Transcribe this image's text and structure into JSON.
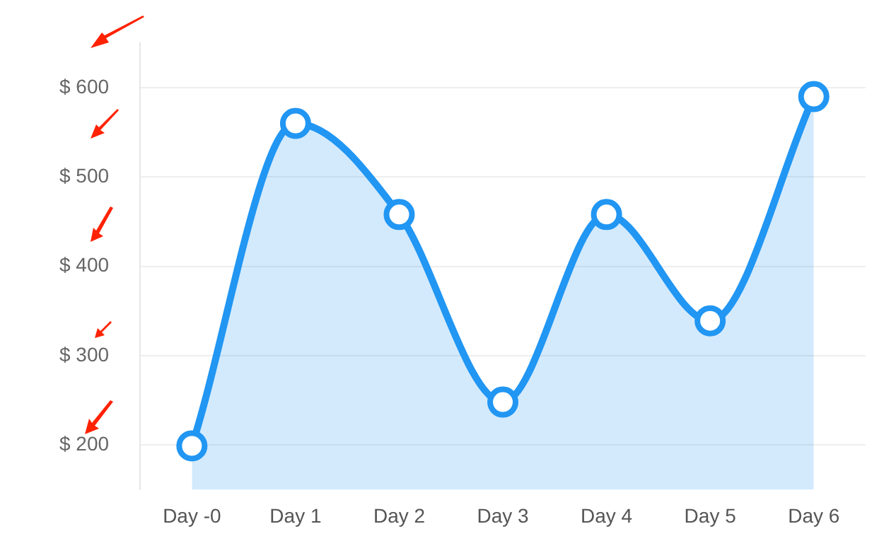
{
  "chart_data": {
    "type": "area",
    "categories": [
      "Day -0",
      "Day 1",
      "Day 2",
      "Day 3",
      "Day 4",
      "Day 5",
      "Day 6"
    ],
    "series": [
      {
        "color": "#2196f3",
        "values": [
          199,
          560,
          458,
          248,
          458,
          339,
          590
        ]
      }
    ],
    "ylim": [
      150,
      650
    ],
    "yticks": [
      {
        "value": 200,
        "label": "$ 200"
      },
      {
        "value": 300,
        "label": "$ 300"
      },
      {
        "value": 400,
        "label": "$ 400"
      },
      {
        "value": 500,
        "label": "$ 500"
      },
      {
        "value": 600,
        "label": "$ 600"
      }
    ],
    "grid": "y",
    "legend": false,
    "marker": "circle",
    "line_style": "solid"
  }
}
